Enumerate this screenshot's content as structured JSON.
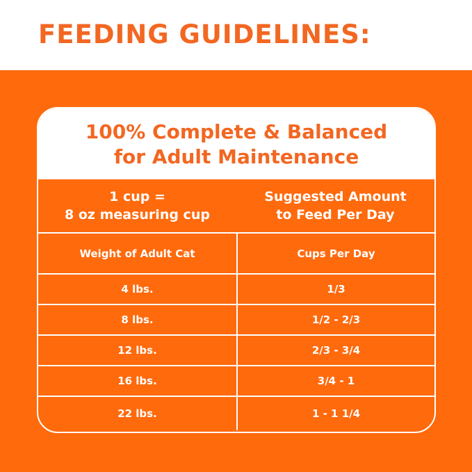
{
  "title": "FEEDING GUIDELINES:",
  "card_title": [
    "100% Complete & Balanced",
    "for Adult Maintenance"
  ],
  "header": {
    "left": [
      "1 cup =",
      "8 oz measuring cup"
    ],
    "right": [
      "Suggested Amount",
      "to Feed Per Day"
    ]
  },
  "columns": [
    "Weight of Adult Cat",
    "Cups Per Day"
  ],
  "rows": [
    [
      "4 lbs.",
      "1/3"
    ],
    [
      "8 lbs.",
      "1/2 - 2/3"
    ],
    [
      "12 lbs.",
      "2/3 - 3/4"
    ],
    [
      "16 lbs.",
      "3/4 - 1"
    ],
    [
      "22 lbs.",
      "1 - 1 1/4"
    ]
  ],
  "colors": {
    "orange": "#ff6a0d",
    "title_orange": "#f26722",
    "white": "#ffffff"
  }
}
